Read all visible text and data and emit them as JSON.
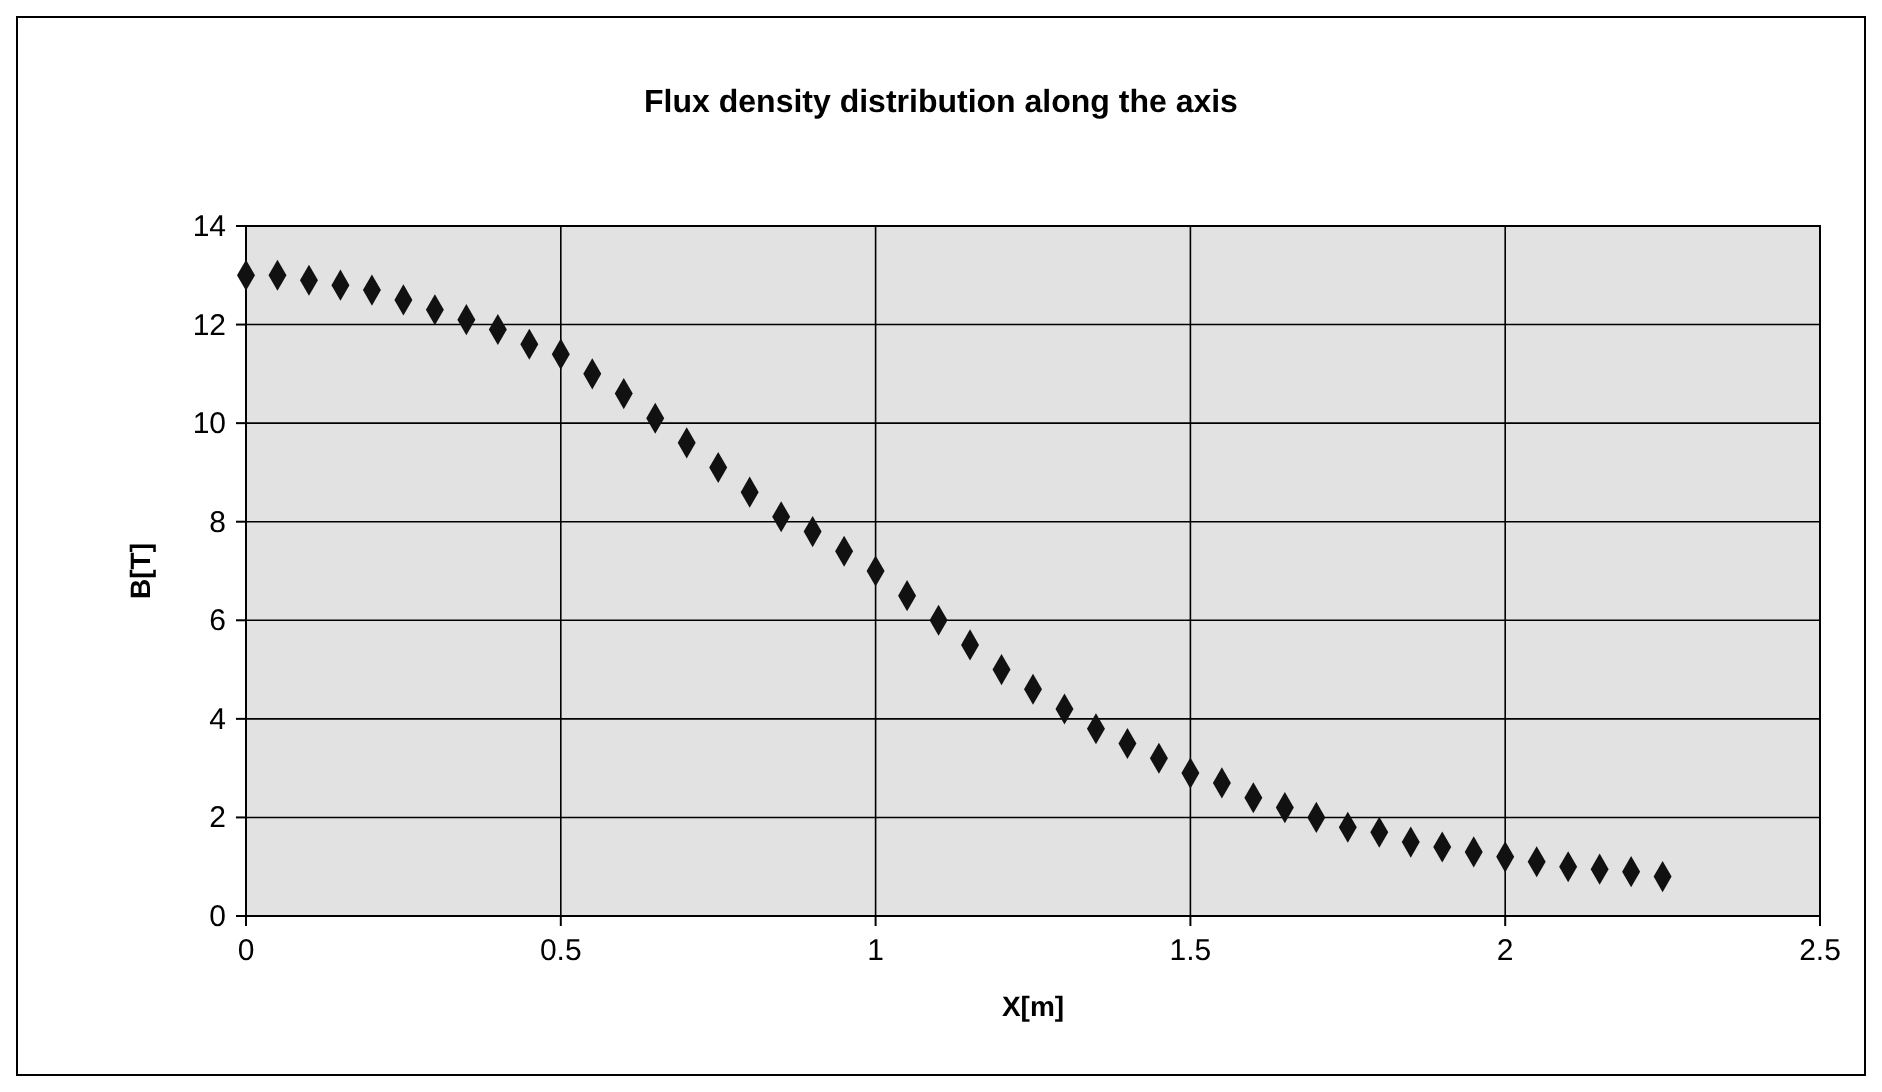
{
  "chart_data": {
    "type": "scatter",
    "title": "Flux density distribution along the axis",
    "xlabel": "X[m]",
    "ylabel": "B[T]",
    "xlim": [
      0,
      2.5
    ],
    "xticks": [
      0,
      0.5,
      1,
      1.5,
      2,
      2.5
    ],
    "ylim": [
      0,
      14
    ],
    "yticks": [
      0,
      2,
      4,
      6,
      8,
      10,
      12,
      14
    ],
    "grid": true,
    "marker": "diamond",
    "series": [
      {
        "color": "#111111",
        "x": [
          0,
          0.05,
          0.1,
          0.15,
          0.2,
          0.25,
          0.3,
          0.35,
          0.4,
          0.45,
          0.5,
          0.55,
          0.6,
          0.65,
          0.7,
          0.75,
          0.8,
          0.85,
          0.9,
          0.95,
          1,
          1.05,
          1.1,
          1.15,
          1.2,
          1.25,
          1.3,
          1.35,
          1.4,
          1.45,
          1.5,
          1.55,
          1.6,
          1.65,
          1.7,
          1.75,
          1.8,
          1.85,
          1.9,
          1.95,
          2,
          2.05,
          2.1,
          2.15,
          2.2,
          2.25
        ],
        "values": [
          13,
          13,
          12.9,
          12.8,
          12.7,
          12.5,
          12.3,
          12.1,
          11.9,
          11.6,
          11.4,
          11,
          10.6,
          10.1,
          9.6,
          9.1,
          8.6,
          8.1,
          7.8,
          7.4,
          7,
          6.5,
          6,
          5.5,
          5,
          4.6,
          4.2,
          3.8,
          3.5,
          3.2,
          2.9,
          2.7,
          2.4,
          2.2,
          2,
          1.8,
          1.7,
          1.5,
          1.4,
          1.3,
          1.2,
          1.1,
          1,
          0.95,
          0.9,
          0.8
        ]
      }
    ]
  }
}
